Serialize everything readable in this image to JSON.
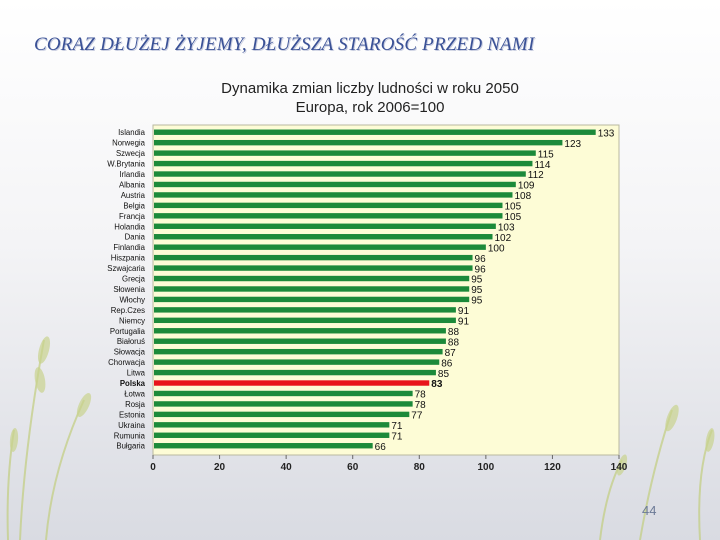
{
  "slide": {
    "title": "CORAZ DŁUŻEJ ŻYJEMY, DŁUŻSZA STAROŚĆ PRZED NAMI",
    "page_number": "44"
  },
  "colors": {
    "bar": "#1c8a3a",
    "highlight": "#e8141b",
    "plot_bg": "#fdfcd6",
    "title": "#3a5196"
  },
  "chart_data": {
    "type": "bar",
    "orientation": "horizontal",
    "title": "Dynamika zmian liczby ludności w roku 2050",
    "subtitle": "Europa, rok 2006=100",
    "xlabel": "",
    "ylabel": "",
    "xlim": [
      0,
      140
    ],
    "xticks": [
      0,
      20,
      40,
      60,
      80,
      100,
      120,
      140
    ],
    "grid": false,
    "highlight": "Polska",
    "categories": [
      "Islandia",
      "Norwegia",
      "Szwecja",
      "W.Brytania",
      "Irlandia",
      "Albania",
      "Austria",
      "Belgia",
      "Francja",
      "Holandia",
      "Dania",
      "Finlandia",
      "Hiszpania",
      "Szwajcaria",
      "Grecja",
      "Słowenia",
      "Włochy",
      "Rep.Czes",
      "Niemcy",
      "Portugalia",
      "Białoruś",
      "Słowacja",
      "Chorwacja",
      "Litwa",
      "Polska",
      "Łotwa",
      "Rosja",
      "Estonia",
      "Ukraina",
      "Rumunia",
      "Bułgaria"
    ],
    "values": [
      133,
      123,
      115,
      114,
      112,
      109,
      108,
      105,
      105,
      103,
      102,
      100,
      96,
      96,
      95,
      95,
      95,
      91,
      91,
      88,
      88,
      87,
      86,
      85,
      83,
      78,
      78,
      77,
      71,
      71,
      66
    ],
    "value_labels": [
      "133",
      "123",
      "115",
      "114",
      "112",
      "109",
      "108",
      "105",
      "105",
      "103",
      "102",
      "100",
      "96",
      "96",
      "95",
      "95",
      "95",
      "91",
      "91",
      "88",
      "88",
      "87",
      "86",
      "85",
      "83",
      "78",
      "78",
      "77",
      "71",
      "71",
      "66"
    ]
  }
}
